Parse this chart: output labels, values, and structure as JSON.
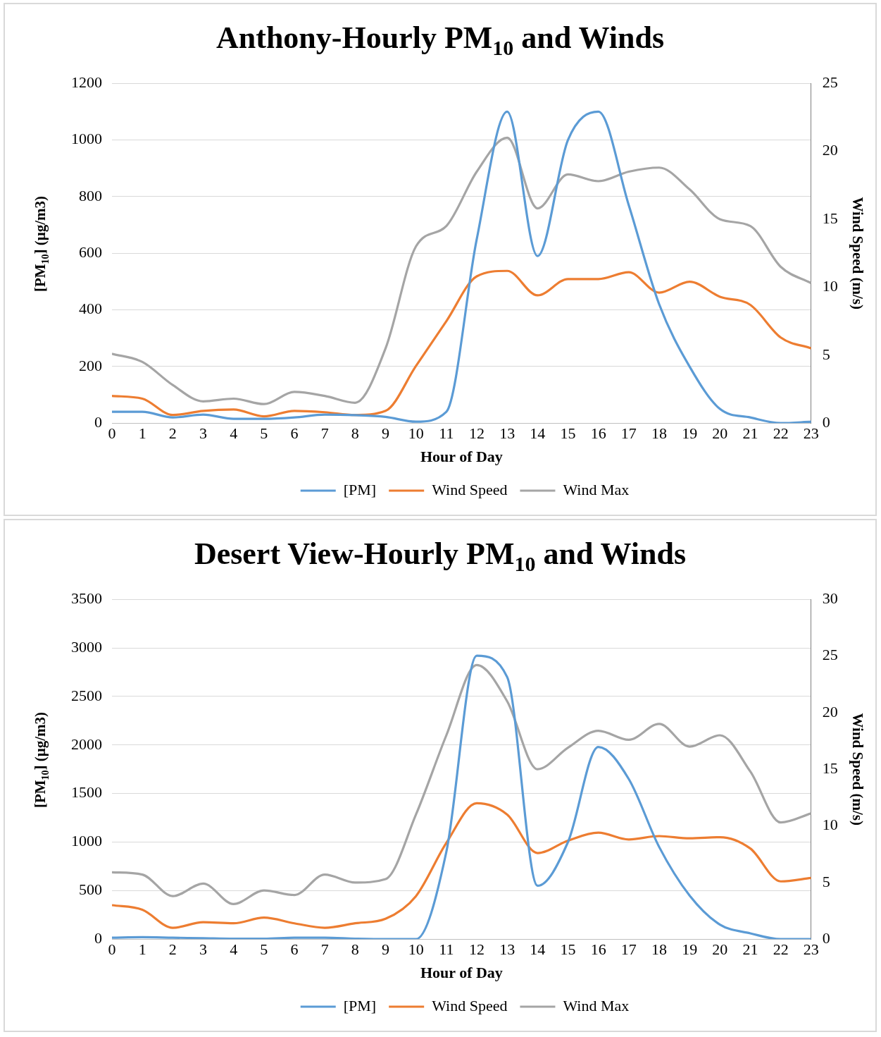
{
  "chart_data": [
    {
      "type": "line",
      "title": "Anthony-Hourly PM$_{10}$ and Winds",
      "xlabel": "Hour of Day",
      "ylabel": "[PM$_{10}$] (μg/m3)",
      "y2label": "Wind Speed (m/s)",
      "x": [
        0,
        1,
        2,
        3,
        4,
        5,
        6,
        7,
        8,
        9,
        10,
        11,
        12,
        13,
        14,
        15,
        16,
        17,
        18,
        19,
        20,
        21,
        22,
        23
      ],
      "xlim": [
        0,
        23
      ],
      "xticks": [
        0,
        1,
        2,
        3,
        4,
        5,
        6,
        7,
        8,
        9,
        10,
        11,
        12,
        13,
        14,
        15,
        16,
        17,
        18,
        19,
        20,
        21,
        22,
        23
      ],
      "ylim": [
        0,
        1200
      ],
      "yticks": [
        0,
        200,
        400,
        600,
        800,
        1000,
        1200
      ],
      "y2lim": [
        0,
        25
      ],
      "y2ticks": [
        0,
        5,
        10,
        15,
        20,
        25
      ],
      "grid": "y",
      "legend": "bottom",
      "marker": "none",
      "line_style": "solid",
      "series": [
        {
          "name": "[PM]",
          "color": "#5b9bd5",
          "values": [
            40,
            40,
            20,
            30,
            15,
            15,
            20,
            30,
            28,
            22,
            5,
            40,
            650,
            1100,
            590,
            1000,
            1100,
            770,
            420,
            200,
            50,
            20,
            0,
            5
          ]
        },
        {
          "name": "Wind Speed",
          "color": "#ed7d31",
          "axis": "y2",
          "values": [
            2.0,
            1.8,
            0.6,
            0.9,
            1.0,
            0.5,
            0.9,
            0.8,
            0.6,
            0.9,
            4.2,
            7.5,
            10.8,
            11.2,
            9.4,
            10.6,
            10.6,
            11.1,
            9.6,
            10.4,
            9.3,
            8.7,
            6.3,
            5.5
          ]
        },
        {
          "name": "Wind Max",
          "color": "#a5a5a5",
          "axis": "y2",
          "values": [
            5.1,
            4.5,
            2.8,
            1.6,
            1.8,
            1.4,
            2.3,
            2.0,
            1.5,
            5.5,
            13,
            14.5,
            18.5,
            21,
            15.8,
            18.3,
            17.8,
            18.5,
            18.8,
            17.2,
            15,
            14.5,
            11.5,
            10.3
          ]
        }
      ]
    },
    {
      "type": "line",
      "title": "Desert View-Hourly PM$_{10}$ and Winds",
      "xlabel": "Hour of Day",
      "ylabel": "[PM$_{10}$] (μg/m3)",
      "y2label": "Wind Speed (m/s)",
      "x": [
        0,
        1,
        2,
        3,
        4,
        5,
        6,
        7,
        8,
        9,
        10,
        11,
        12,
        13,
        14,
        15,
        16,
        17,
        18,
        19,
        20,
        21,
        22,
        23
      ],
      "xlim": [
        0,
        23
      ],
      "xticks": [
        0,
        1,
        2,
        3,
        4,
        5,
        6,
        7,
        8,
        9,
        10,
        11,
        12,
        13,
        14,
        15,
        16,
        17,
        18,
        19,
        20,
        21,
        22,
        23
      ],
      "ylim": [
        0,
        3500
      ],
      "yticks": [
        0,
        500,
        1000,
        1500,
        2000,
        2500,
        3000,
        3500
      ],
      "y2lim": [
        0,
        30
      ],
      "y2ticks": [
        0,
        5,
        10,
        15,
        20,
        25,
        30
      ],
      "grid": "y",
      "legend": "bottom",
      "marker": "none",
      "line_style": "solid",
      "series": [
        {
          "name": "[PM]",
          "color": "#5b9bd5",
          "values": [
            15,
            20,
            15,
            10,
            5,
            5,
            15,
            15,
            5,
            0,
            0,
            900,
            2920,
            2700,
            550,
            1000,
            1980,
            1650,
            950,
            450,
            150,
            60,
            0,
            0
          ]
        },
        {
          "name": "Wind Speed",
          "color": "#ed7d31",
          "axis": "y2",
          "values": [
            3.0,
            2.6,
            1.0,
            1.5,
            1.4,
            1.9,
            1.4,
            1.0,
            1.4,
            1.8,
            3.8,
            8.5,
            12.0,
            11.0,
            7.6,
            8.7,
            9.4,
            8.8,
            9.1,
            8.9,
            9.0,
            8.0,
            5.1,
            5.4
          ]
        },
        {
          "name": "Wind Max",
          "color": "#a5a5a5",
          "axis": "y2",
          "values": [
            5.9,
            5.7,
            3.8,
            4.9,
            3.1,
            4.3,
            3.9,
            5.7,
            5.0,
            5.3,
            11,
            18,
            24.2,
            21,
            15,
            16.9,
            18.4,
            17.6,
            19,
            17,
            18,
            14.8,
            10.3,
            11.1
          ]
        }
      ]
    }
  ]
}
